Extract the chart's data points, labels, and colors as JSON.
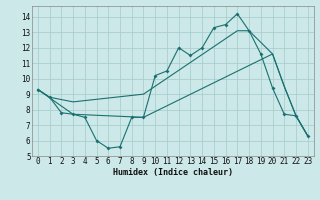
{
  "xlabel": "Humidex (Indice chaleur)",
  "xlim": [
    -0.5,
    23.5
  ],
  "ylim": [
    5,
    14.7
  ],
  "yticks": [
    5,
    6,
    7,
    8,
    9,
    10,
    11,
    12,
    13,
    14
  ],
  "xticks": [
    0,
    1,
    2,
    3,
    4,
    5,
    6,
    7,
    8,
    9,
    10,
    11,
    12,
    13,
    14,
    15,
    16,
    17,
    18,
    19,
    20,
    21,
    22,
    23
  ],
  "background_color": "#cce8e8",
  "grid_color": "#aacece",
  "line_color": "#1a7070",
  "line1_x": [
    0,
    1,
    2,
    3,
    4,
    5,
    6,
    7,
    8,
    9,
    10,
    11,
    12,
    13,
    14,
    15,
    16,
    17,
    18,
    19,
    20,
    21,
    22,
    23
  ],
  "line1_y": [
    9.3,
    8.8,
    7.8,
    7.7,
    7.5,
    6.0,
    5.5,
    5.6,
    7.5,
    7.5,
    10.2,
    10.5,
    12.0,
    11.5,
    12.0,
    13.3,
    13.5,
    14.2,
    13.1,
    11.6,
    9.4,
    7.7,
    7.6,
    6.3
  ],
  "line2_x": [
    0,
    1,
    3,
    9,
    17,
    18,
    20,
    21,
    22,
    23
  ],
  "line2_y": [
    9.3,
    8.8,
    8.5,
    9.0,
    13.1,
    13.1,
    11.6,
    9.5,
    7.6,
    6.3
  ],
  "line3_x": [
    0,
    3,
    9,
    20,
    21,
    22,
    23
  ],
  "line3_y": [
    9.3,
    7.7,
    7.5,
    11.6,
    9.5,
    7.6,
    6.3
  ]
}
